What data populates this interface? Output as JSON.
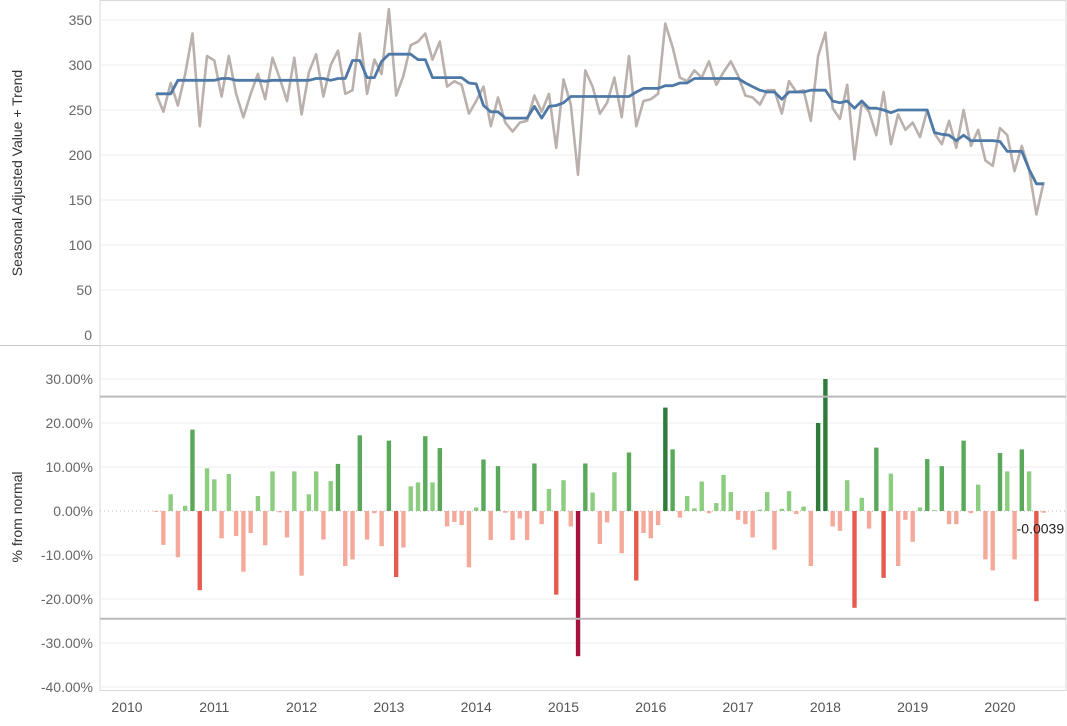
{
  "chart_data": [
    {
      "panel": "top",
      "type": "line",
      "ylabel": "Seasonal Adjusted Value + Trend",
      "ylim": [
        0,
        370
      ],
      "y_ticks": [
        "0",
        "50",
        "100",
        "150",
        "200",
        "250",
        "300",
        "350"
      ],
      "grid": true,
      "colors": {
        "raw": "#bab0ac",
        "trend": "#4e79a7"
      },
      "x_start": "2010-05",
      "series": [
        {
          "values": [
            268,
            248,
            280,
            255,
            290,
            335,
            232,
            310,
            305,
            265,
            310,
            268,
            242,
            268,
            290,
            262,
            308,
            285,
            260,
            308,
            245,
            292,
            312,
            265,
            300,
            316,
            268,
            272,
            335,
            268,
            306,
            290,
            362,
            266,
            288,
            322,
            326,
            335,
            306,
            326,
            276,
            282,
            278,
            246,
            260,
            276,
            232,
            264,
            236,
            226,
            236,
            238,
            266,
            248,
            268,
            208,
            284,
            256,
            178,
            294,
            276,
            246,
            258,
            286,
            242,
            310,
            232,
            260,
            262,
            268,
            346,
            320,
            286,
            282,
            294,
            286,
            304,
            278,
            292,
            304,
            288,
            266,
            264,
            256,
            272,
            272,
            246,
            282,
            270,
            272,
            238,
            310,
            336,
            252,
            240,
            278,
            195,
            258,
            248,
            222,
            270,
            212,
            245,
            228,
            236,
            220,
            250,
            224,
            212,
            238,
            208,
            250,
            210,
            228,
            194,
            188,
            230,
            222,
            182,
            210,
            184,
            134,
            170
          ],
          "values_note": "Values read from gray line"
        },
        {
          "values": [
            268,
            268,
            268,
            283,
            283,
            283,
            283,
            283,
            283,
            285,
            285,
            283,
            283,
            283,
            283,
            282,
            283,
            283,
            283,
            283,
            283,
            283,
            285,
            285,
            283,
            285,
            285,
            305,
            305,
            286,
            286,
            304,
            312,
            312,
            312,
            312,
            306,
            306,
            286,
            286,
            286,
            286,
            286,
            280,
            279,
            255,
            248,
            248,
            241,
            241,
            241,
            241,
            254,
            241,
            254,
            255,
            258,
            265,
            265,
            265,
            265,
            265,
            265,
            265,
            265,
            265,
            270,
            274,
            274,
            274,
            277,
            277,
            280,
            280,
            285,
            285,
            285,
            285,
            285,
            285,
            285,
            280,
            276,
            272,
            270,
            270,
            262,
            270,
            270,
            270,
            272,
            272,
            272,
            260,
            258,
            260,
            252,
            260,
            252,
            252,
            250,
            247,
            250,
            250,
            250,
            250,
            250,
            225,
            223,
            222,
            216,
            222,
            216,
            216,
            216,
            216,
            215,
            204,
            204,
            204,
            184,
            168,
            168
          ]
        }
      ]
    },
    {
      "panel": "bottom",
      "type": "bar",
      "ylabel": "% from normal",
      "ylim": [
        -0.42,
        0.36
      ],
      "y_ticks": [
        "30.00%",
        "20.00%",
        "10.00%",
        "0.00%",
        "-10.00%",
        "-20.00%",
        "-30.00%",
        "-40.00%"
      ],
      "reference_lines": [
        0.26,
        -0.245
      ],
      "end_label": "-0.0039",
      "x_start": "2010-05",
      "values": [
        -0.002,
        -0.077,
        0.038,
        -0.105,
        0.012,
        0.185,
        -0.18,
        0.097,
        0.072,
        -0.062,
        0.084,
        -0.057,
        -0.138,
        -0.05,
        0.034,
        -0.078,
        0.09,
        -0.003,
        -0.06,
        0.09,
        -0.147,
        0.038,
        0.09,
        -0.065,
        0.068,
        0.107,
        -0.125,
        -0.11,
        0.172,
        -0.065,
        -0.005,
        -0.08,
        0.16,
        -0.15,
        -0.083,
        0.056,
        0.065,
        0.17,
        0.065,
        0.143,
        -0.035,
        -0.025,
        -0.032,
        -0.128,
        0.008,
        0.117,
        -0.066,
        0.102,
        -0.004,
        -0.066,
        -0.017,
        -0.066,
        0.108,
        -0.03,
        0.05,
        -0.19,
        0.07,
        -0.035,
        -0.33,
        0.108,
        0.042,
        -0.075,
        -0.026,
        0.088,
        -0.096,
        0.133,
        -0.158,
        -0.05,
        -0.062,
        -0.032,
        0.235,
        0.14,
        -0.015,
        0.034,
        0.006,
        0.067,
        -0.005,
        0.018,
        0.082,
        0.043,
        -0.02,
        -0.03,
        -0.06,
        0.003,
        0.043,
        -0.088,
        0.005,
        0.045,
        -0.007,
        0.01,
        -0.125,
        0.2,
        0.3,
        -0.035,
        -0.045,
        0.07,
        -0.22,
        0.03,
        -0.04,
        0.144,
        -0.152,
        0.085,
        -0.125,
        -0.02,
        -0.07,
        0.008,
        0.118,
        0.002,
        0.102,
        -0.03,
        -0.03,
        0.16,
        -0.005,
        0.06,
        -0.11,
        -0.135,
        0.132,
        0.09,
        -0.11,
        0.14,
        0.09,
        -0.205,
        -0.0039
      ],
      "color_scale": {
        "pos_light": "#8ccd7f",
        "pos_mid": "#5aa95a",
        "pos_dark": "#2e7b3a",
        "neg_light": "#f4a99a",
        "neg_mid": "#e55c4f",
        "neg_dark": "#a5123c"
      }
    }
  ],
  "x_axis": {
    "tick_labels": [
      "2010",
      "2011",
      "2012",
      "2013",
      "2014",
      "2015",
      "2016",
      "2017",
      "2018",
      "2019",
      "2020"
    ]
  }
}
